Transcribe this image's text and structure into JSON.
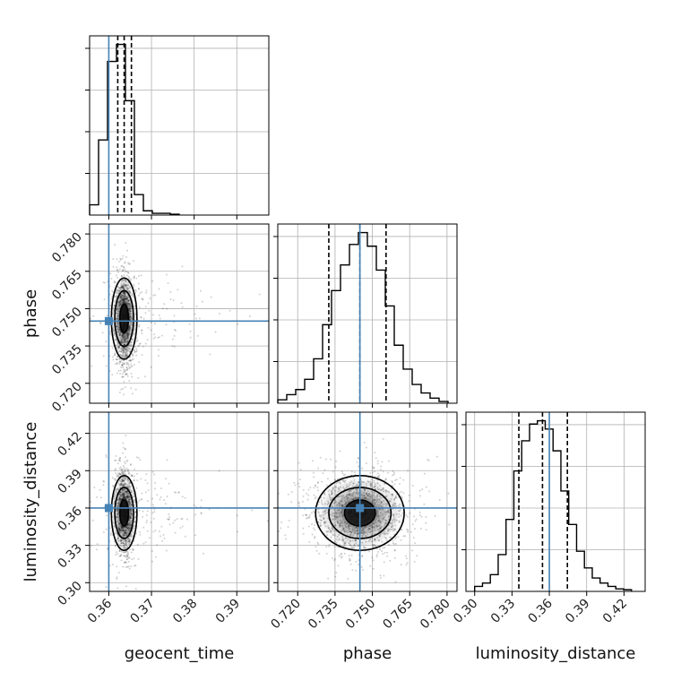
{
  "chart_data": {
    "type": "corner",
    "parameters": [
      "geocent_time",
      "phase",
      "luminosity_distance"
    ],
    "truth": {
      "geocent_time": 0.36,
      "phase": 0.745,
      "luminosity_distance": 0.36
    },
    "truth_color": "#4682b4",
    "grid": true,
    "axis_ranges": {
      "geocent_time": [
        0.3555,
        0.3975
      ],
      "phase": [
        0.712,
        0.784
      ],
      "luminosity_distance": [
        0.293,
        0.437
      ]
    },
    "ticks": {
      "geocent_time": {
        "values": [
          0.36,
          0.37,
          0.38,
          0.39
        ],
        "labels": [
          "0.36",
          "0.37",
          "0.38",
          "0.39"
        ]
      },
      "phase": {
        "values": [
          0.72,
          0.735,
          0.75,
          0.765,
          0.78
        ],
        "labels": [
          "0.720",
          "0.735",
          "0.750",
          "0.765",
          "0.780"
        ]
      },
      "luminosity_distance": {
        "values": [
          0.3,
          0.33,
          0.36,
          0.39,
          0.42
        ],
        "labels": [
          "0.30",
          "0.33",
          "0.36",
          "0.39",
          "0.42"
        ]
      }
    },
    "quantiles": {
      "geocent_time": [
        0.3621,
        0.3636,
        0.3653
      ],
      "phase": [
        0.7325,
        0.745,
        0.7555
      ],
      "luminosity_distance": [
        0.3355,
        0.3545,
        0.3745
      ]
    },
    "histograms": {
      "geocent_time": {
        "edges": [
          0.3555,
          0.3576,
          0.3597,
          0.3618,
          0.3639,
          0.366,
          0.3681,
          0.3702,
          0.3723,
          0.3744,
          0.3765
        ],
        "counts": [
          0.06,
          0.44,
          0.9,
          1.0,
          0.67,
          0.12,
          0.025,
          0.01,
          0.01,
          0.005
        ]
      },
      "phase": {
        "edges": [
          0.712,
          0.7156,
          0.7192,
          0.7228,
          0.7264,
          0.73,
          0.7336,
          0.7372,
          0.7408,
          0.7444,
          0.748,
          0.7516,
          0.7552,
          0.7588,
          0.7624,
          0.766,
          0.7696,
          0.7732,
          0.7768,
          0.7804
        ],
        "counts": [
          0.02,
          0.05,
          0.08,
          0.14,
          0.26,
          0.46,
          0.66,
          0.81,
          0.93,
          1.0,
          0.92,
          0.78,
          0.57,
          0.34,
          0.2,
          0.11,
          0.06,
          0.03,
          0.01
        ]
      },
      "luminosity_distance": {
        "edges": [
          0.3,
          0.3063,
          0.3126,
          0.3189,
          0.3252,
          0.3315,
          0.3378,
          0.3441,
          0.3504,
          0.3567,
          0.363,
          0.3693,
          0.3756,
          0.3819,
          0.3882,
          0.3945,
          0.4008,
          0.4071,
          0.4134,
          0.4197,
          0.426
        ],
        "counts": [
          0.03,
          0.05,
          0.1,
          0.22,
          0.43,
          0.72,
          0.9,
          1.0,
          1.02,
          0.97,
          0.84,
          0.6,
          0.4,
          0.24,
          0.14,
          0.08,
          0.05,
          0.03,
          0.015,
          0.01
        ]
      }
    },
    "scatter_pairs": [
      {
        "x": "geocent_time",
        "y": "phase",
        "center": [
          0.3636,
          0.746
        ],
        "sigma": [
          0.0011,
          0.0095
        ],
        "levels": [
          [
            0.001,
            0.0058
          ],
          [
            0.0022,
            0.0112
          ],
          [
            0.003,
            0.0163
          ]
        ]
      },
      {
        "x": "geocent_time",
        "y": "luminosity_distance",
        "center": [
          0.3636,
          0.356
        ],
        "sigma": [
          0.0011,
          0.0172
        ],
        "levels": [
          [
            0.001,
            0.0105
          ],
          [
            0.0022,
            0.0205
          ],
          [
            0.003,
            0.03
          ]
        ]
      },
      {
        "x": "phase",
        "y": "luminosity_distance",
        "center": [
          0.745,
          0.356
        ],
        "sigma": [
          0.0095,
          0.0172
        ],
        "levels": [
          [
            0.0062,
            0.0105
          ],
          [
            0.0125,
            0.0205
          ],
          [
            0.0178,
            0.03
          ]
        ]
      }
    ]
  }
}
